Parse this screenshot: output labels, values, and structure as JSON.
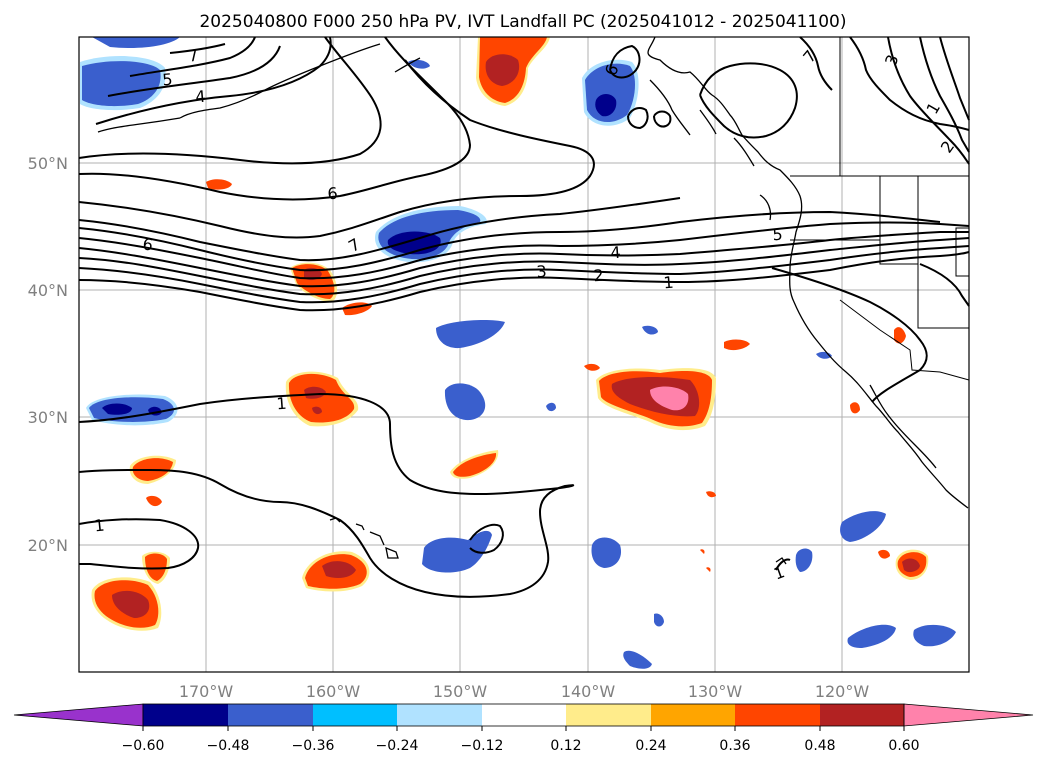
{
  "title": "2025040800 F000 250 hPa PV, IVT Landfall PC (2025041012 - 2025041100)",
  "lon_ticks": [
    "170°W",
    "160°W",
    "150°W",
    "140°W",
    "130°W",
    "120°W"
  ],
  "lat_ticks": [
    "20°N",
    "30°N",
    "40°N",
    "50°N"
  ],
  "contour_labels": [
    "7",
    "5",
    "4",
    "6",
    "6",
    "7",
    "5",
    "4",
    "3",
    "2",
    "1",
    "1",
    "1",
    "6",
    "1",
    "3",
    "2",
    "1",
    "7"
  ],
  "colorbar": {
    "ticks": [
      "−0.60",
      "−0.48",
      "−0.36",
      "−0.24",
      "−0.12",
      "0.12",
      "0.24",
      "0.36",
      "0.48",
      "0.60"
    ],
    "colors": [
      "#9932cc",
      "#00008b",
      "#3a5fcd",
      "#00bfff",
      "#b0e2ff",
      "#ffffff",
      "#ffec8b",
      "#ffa500",
      "#ff4500",
      "#b22222",
      "#ff82ab"
    ]
  },
  "fill_colors": {
    "neg_outer": "#b0e2ff",
    "neg_mid": "#00bfff",
    "neg_core": "#3a5fcd",
    "neg_deep": "#00008b",
    "pos_outer": "#ffec8b",
    "pos_mid": "#ffa500",
    "pos_core": "#ff4500",
    "pos_deep": "#b22222",
    "pos_max": "#ff82ab"
  }
}
